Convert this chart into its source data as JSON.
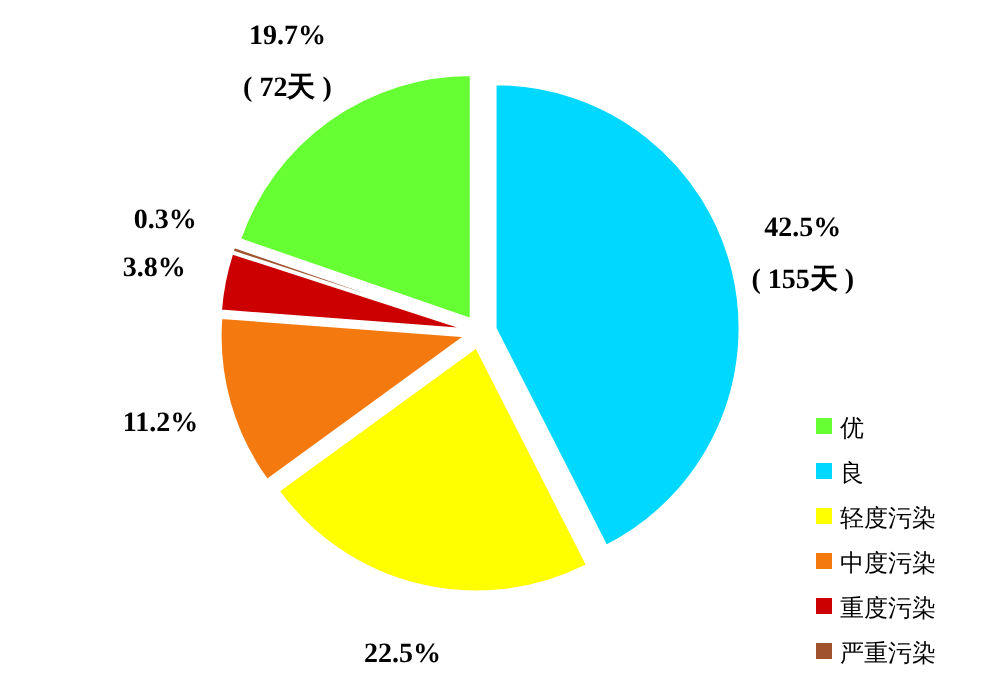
{
  "chart_data": {
    "type": "pie",
    "categories": [
      "优",
      "良",
      "轻度污染",
      "中度污染",
      "重度污染",
      "严重污染"
    ],
    "values": [
      19.7,
      42.5,
      22.5,
      11.2,
      3.8,
      0.3
    ],
    "colors": [
      "#66ff33",
      "#00d8ff",
      "#ffff00",
      "#f47a10",
      "#cc0000",
      "#a0522d"
    ],
    "value_labels": [
      "19.7%\n( 72天 )",
      "42.5%\n( 155天 )",
      "22.5%",
      "11.2%",
      "3.8%",
      "0.3%"
    ],
    "legend": "bottom right"
  }
}
